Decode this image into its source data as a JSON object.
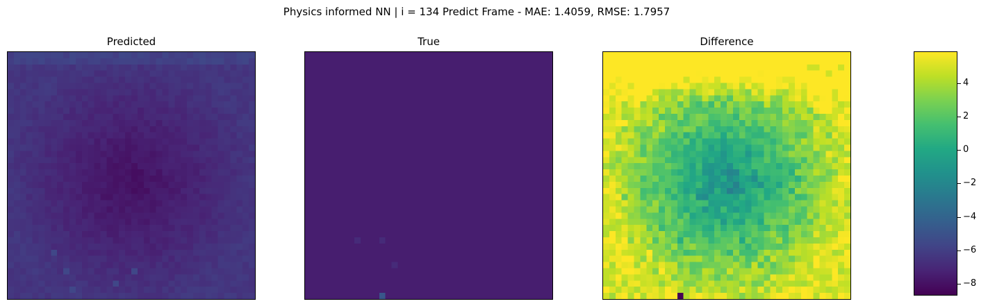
{
  "figure": {
    "suptitle": "Physics informed NN | i = 134 Predict Frame - MAE: 1.4059, RMSE: 1.7957"
  },
  "chart_data": [
    {
      "type": "heatmap",
      "title": "Predicted",
      "grid_size": [
        40,
        40
      ],
      "value_range": [
        -8.7,
        -5.5
      ],
      "pattern": "radial low center, higher edges, noisy",
      "xlabel": "",
      "ylabel": ""
    },
    {
      "type": "heatmap",
      "title": "True",
      "grid_size": [
        40,
        40
      ],
      "value_range": [
        -7.5,
        -7.5
      ],
      "pattern": "uniform with a few isolated bright pixels near bottom",
      "xlabel": "",
      "ylabel": ""
    },
    {
      "type": "heatmap",
      "title": "Difference",
      "grid_size": [
        40,
        40
      ],
      "value_range": [
        -8.7,
        5.9
      ],
      "pattern": "high at top edge (top-right max ~5), low in center (~-2), one very low pixel at bottom",
      "xlabel": "",
      "ylabel": ""
    },
    {
      "type": "colorbar",
      "colormap": "viridis",
      "ylim": [
        -8.7,
        5.9
      ],
      "ticks": [
        4,
        2,
        0,
        -2,
        -4,
        -6,
        -8
      ],
      "tick_labels": [
        "4",
        "2",
        "0",
        "−2",
        "−4",
        "−6",
        "−8"
      ]
    }
  ]
}
